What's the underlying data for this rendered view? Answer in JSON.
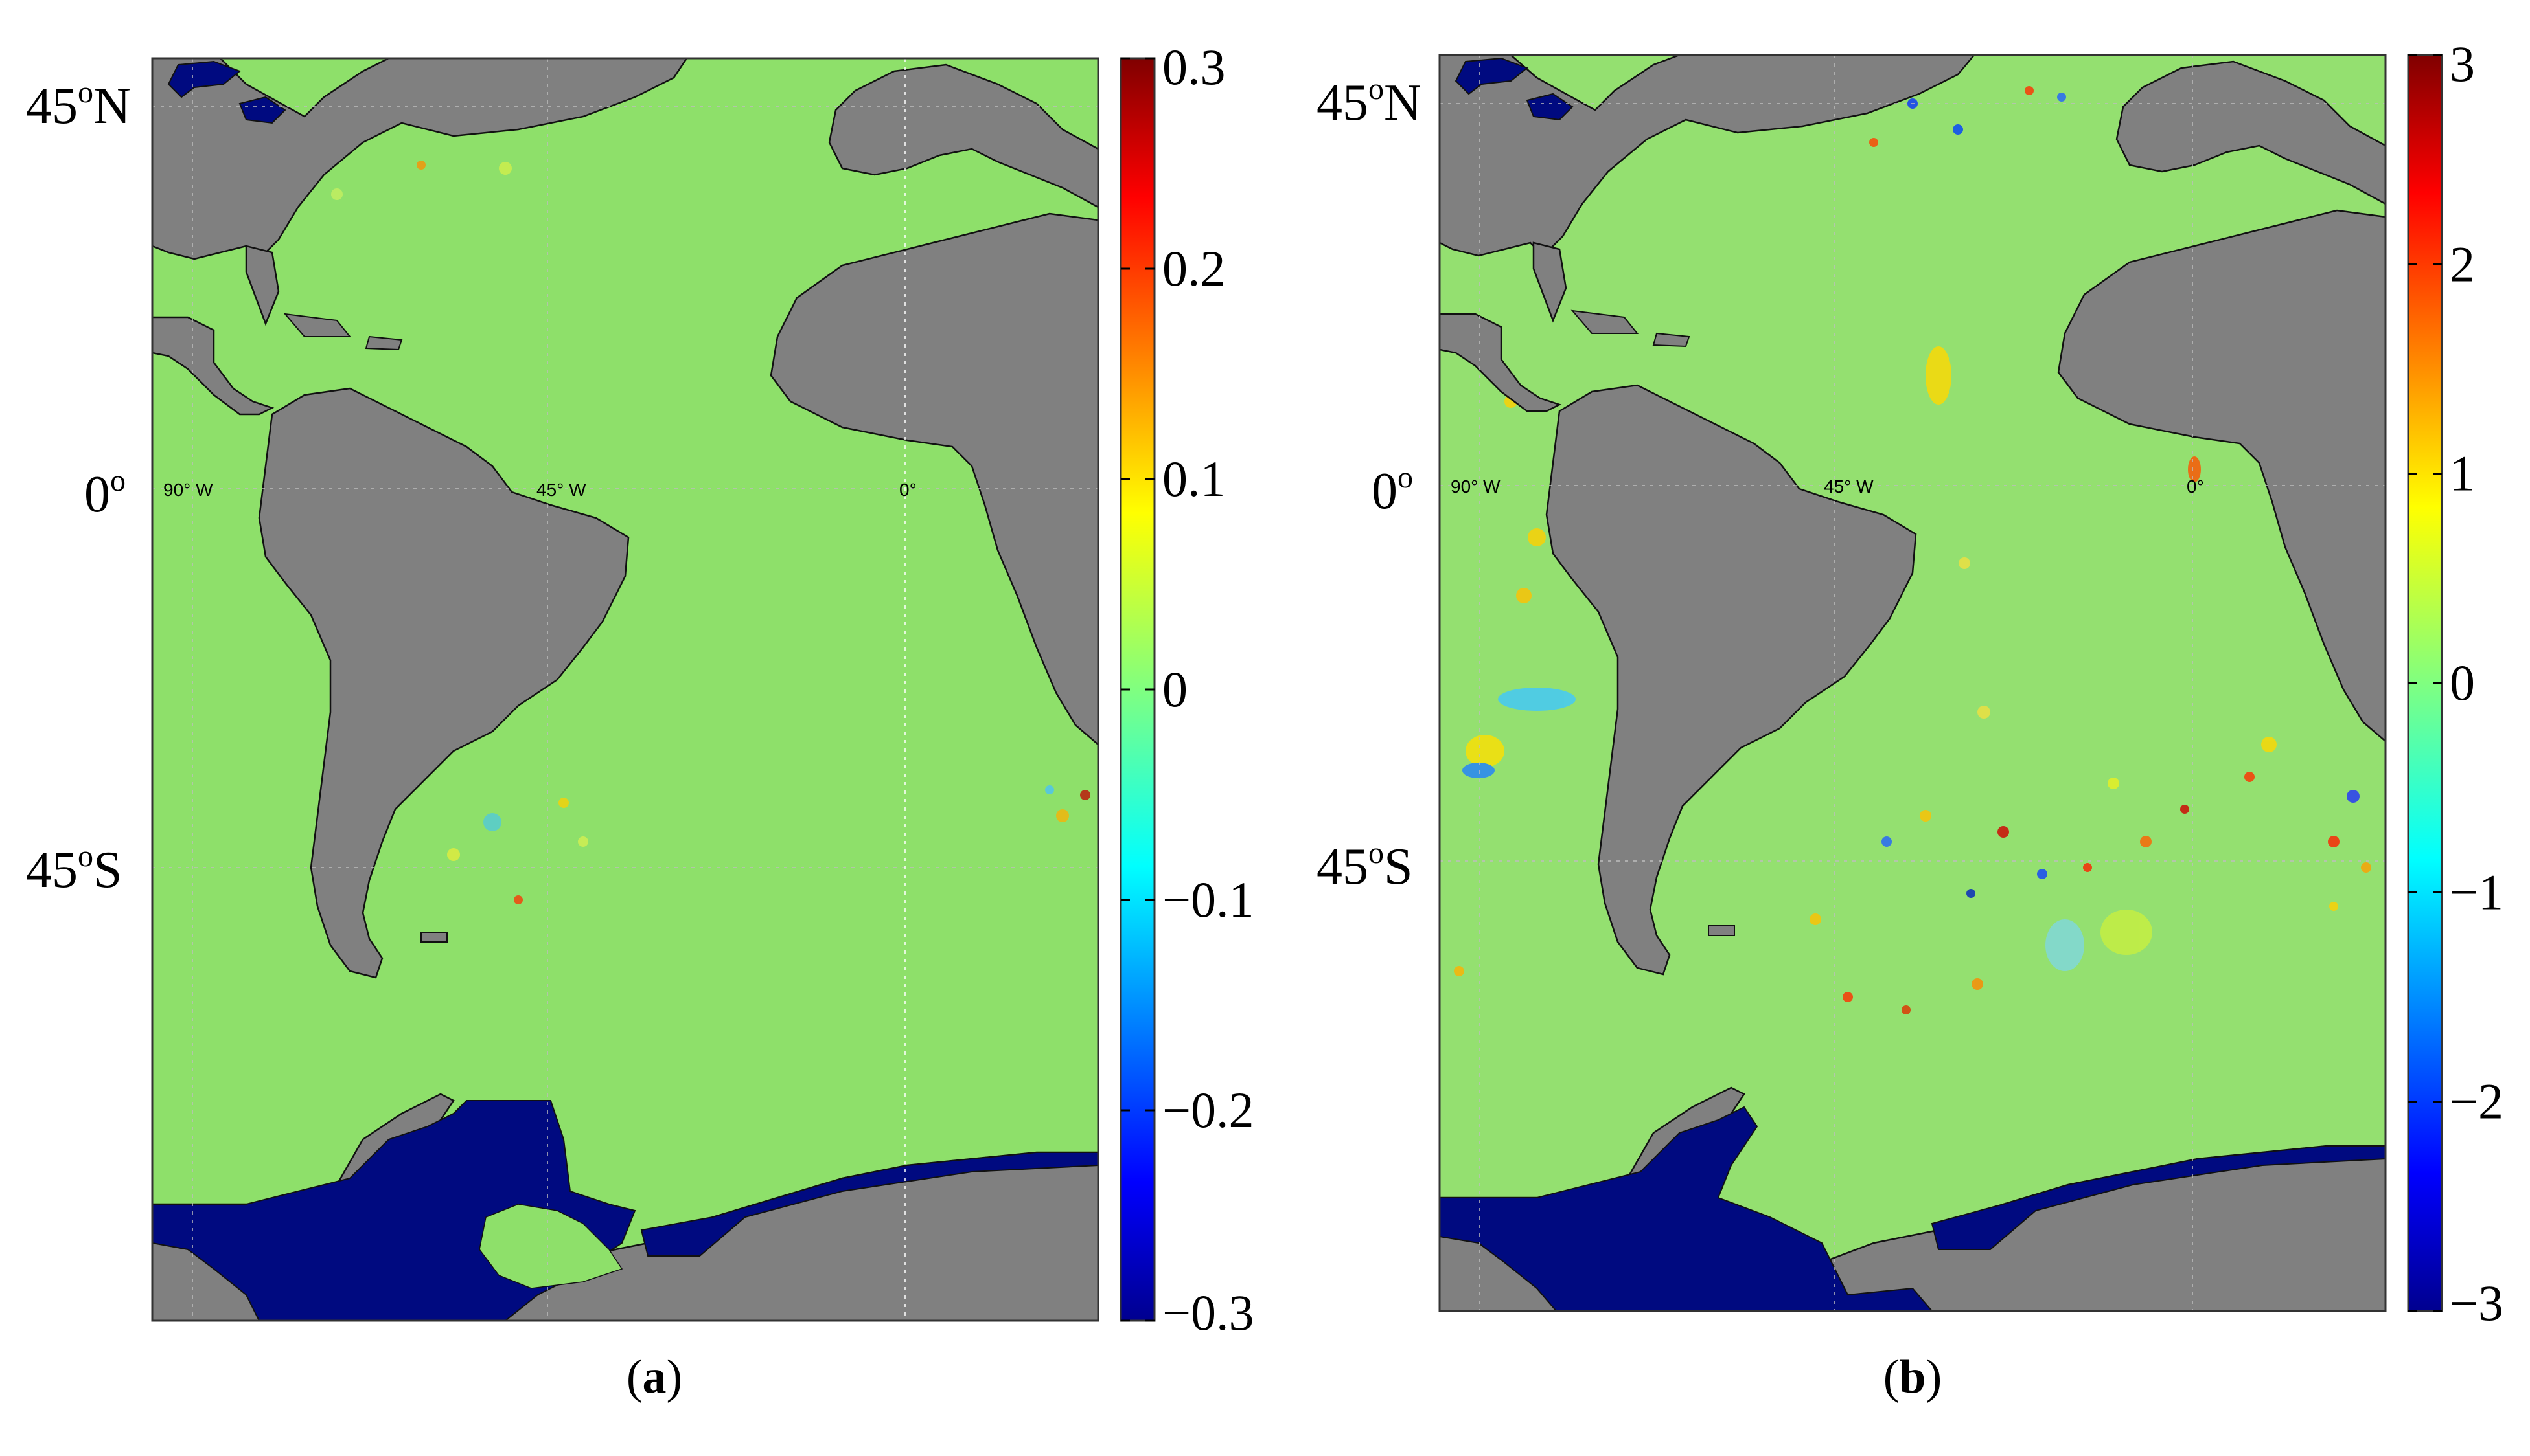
{
  "panels": [
    {
      "id": "a",
      "caption_open": "(",
      "caption_letter": "a",
      "caption_close": ")",
      "lat_labels": [
        {
          "deg": "45",
          "sup": "o",
          "hem": "N",
          "value": 45
        },
        {
          "deg": "0",
          "sup": "o",
          "hem": "",
          "value": 0
        },
        {
          "deg": "45",
          "sup": "o",
          "hem": "S",
          "value": -45
        }
      ],
      "lon_labels": [
        "90° W",
        "45° W",
        "0°"
      ],
      "colorbar": {
        "min": -0.3,
        "max": 0.3,
        "ticks": [
          {
            "value": 0.3,
            "label": "0.3"
          },
          {
            "value": 0.2,
            "label": "0.2"
          },
          {
            "value": 0.1,
            "label": "0.1"
          },
          {
            "value": 0,
            "label": "0"
          },
          {
            "value": -0.1,
            "label": "−0.1"
          },
          {
            "value": -0.2,
            "label": "−0.2"
          },
          {
            "value": -0.3,
            "label": "−0.3"
          }
        ]
      },
      "colors": {
        "ocean": "#8ee06a",
        "land": "#808080",
        "ice": "#000a80"
      }
    },
    {
      "id": "b",
      "caption_open": "(",
      "caption_letter": "b",
      "caption_close": ")",
      "lat_labels": [
        {
          "deg": "45",
          "sup": "o",
          "hem": "N",
          "value": 45
        },
        {
          "deg": "0",
          "sup": "o",
          "hem": "",
          "value": 0
        },
        {
          "deg": "45",
          "sup": "o",
          "hem": "S",
          "value": -45
        }
      ],
      "lon_labels": [
        "90° W",
        "45° W",
        "0°"
      ],
      "colorbar": {
        "min": -3,
        "max": 3,
        "ticks": [
          {
            "value": 3,
            "label": "3"
          },
          {
            "value": 2,
            "label": "2"
          },
          {
            "value": 1,
            "label": "1"
          },
          {
            "value": 0,
            "label": "0"
          },
          {
            "value": -1,
            "label": "−1"
          },
          {
            "value": -2,
            "label": "−2"
          },
          {
            "value": -3,
            "label": "−3"
          }
        ]
      },
      "colors": {
        "ocean": "#94e070",
        "land": "#808080",
        "ice": "#000a80"
      }
    }
  ]
}
